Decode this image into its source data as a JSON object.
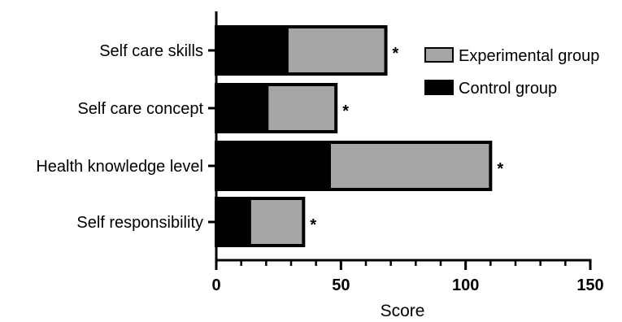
{
  "chart_data": {
    "type": "bar",
    "orientation": "horizontal",
    "stacked": true,
    "categories": [
      "Self care skills",
      "Self care concept",
      "Health knowledge level",
      "Self responsibility"
    ],
    "series": [
      {
        "name": "Control group",
        "values": [
          29,
          21,
          46,
          14
        ],
        "color": "#000000"
      },
      {
        "name": "Experimental group",
        "values": [
          39,
          27,
          64,
          21
        ],
        "color": "#a6a6a6"
      }
    ],
    "annotations": [
      "*",
      "*",
      "*",
      "*"
    ],
    "xlabel": "Score",
    "ylabel": "",
    "title": "",
    "xlim": [
      0,
      150
    ],
    "x_ticks": [
      "0",
      "50",
      "100",
      "150"
    ],
    "legend_position": "top-right",
    "legend_order": [
      "Experimental group",
      "Control group"
    ],
    "grid": false
  }
}
